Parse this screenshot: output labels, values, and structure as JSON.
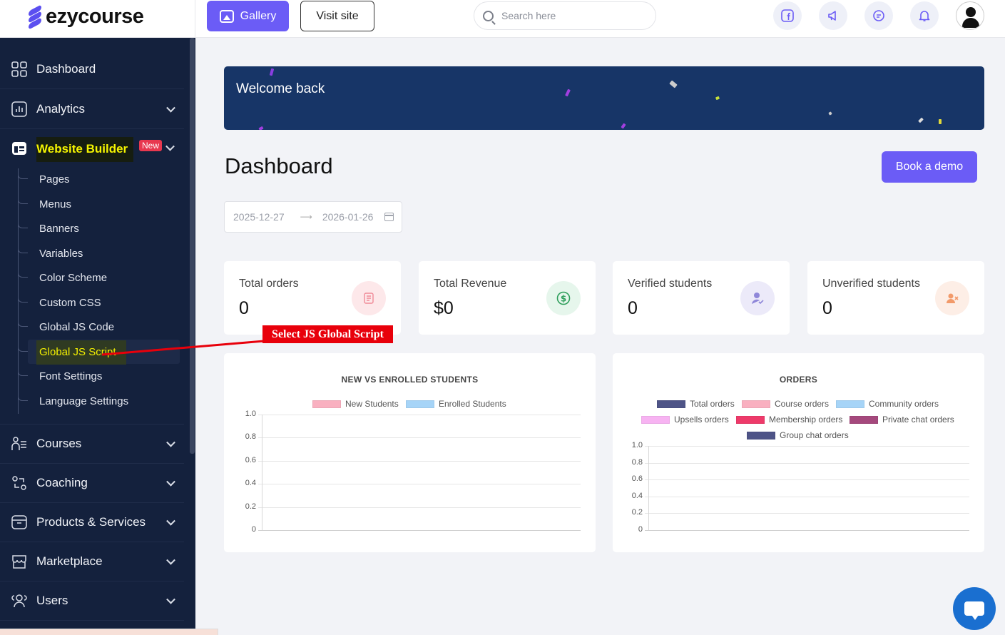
{
  "brand": {
    "logo_text": "ezycourse",
    "accent": "#6b5cf6",
    "sidebar_bg": "#14213d"
  },
  "header": {
    "gallery_label": "Gallery",
    "visit_label": "Visit site",
    "search_placeholder": "Search here",
    "icons": [
      "facebook-icon",
      "megaphone-icon",
      "chat-icon",
      "bell-icon",
      "user-avatar-icon"
    ]
  },
  "sidebar": {
    "items": [
      {
        "label": "Dashboard",
        "icon": "grid-icon"
      },
      {
        "label": "Analytics",
        "icon": "chart-icon"
      },
      {
        "label": "Website Builder",
        "icon": "builder-icon",
        "badge": "New"
      },
      {
        "label": "Courses",
        "icon": "courses-icon"
      },
      {
        "label": "Coaching",
        "icon": "coaching-icon"
      },
      {
        "label": "Products & Services",
        "icon": "products-icon"
      },
      {
        "label": "Marketplace",
        "icon": "marketplace-icon"
      },
      {
        "label": "Users",
        "icon": "users-icon"
      }
    ],
    "sub_items": [
      "Pages",
      "Menus",
      "Banners",
      "Variables",
      "Color Scheme",
      "Custom CSS",
      "Global JS Code",
      "Global JS Script",
      "Font Settings",
      "Language Settings"
    ]
  },
  "welcome": {
    "text": "Welcome back"
  },
  "page": {
    "title": "Dashboard",
    "demo_label": "Book a demo"
  },
  "date_range": {
    "start": "2025-12-27",
    "end": "2026-01-26"
  },
  "stats": [
    {
      "title": "Total orders",
      "value": "0",
      "icon": "orders-icon",
      "color": "#fde8ea"
    },
    {
      "title": "Total Revenue",
      "value": "$0",
      "icon": "dollar-icon",
      "color": "#e6f6ec"
    },
    {
      "title": "Verified students",
      "value": "0",
      "icon": "verified-user-icon",
      "color": "#eceaf9"
    },
    {
      "title": "Unverified students",
      "value": "0",
      "icon": "unverified-user-icon",
      "color": "#fdeee6"
    }
  ],
  "annotation": {
    "text": "Select JS Global Script"
  },
  "chart_data": [
    {
      "type": "line",
      "title": "NEW VS ENROLLED STUDENTS",
      "series": [
        {
          "name": "New Students",
          "color": "#f9b0c0",
          "values": []
        },
        {
          "name": "Enrolled Students",
          "color": "#a6d4f7",
          "values": []
        }
      ],
      "ylim": [
        0,
        1.0
      ],
      "yticks": [
        "1.0",
        "0.8",
        "0.6",
        "0.4",
        "0.2",
        "0"
      ],
      "grid": true,
      "legend": "top"
    },
    {
      "type": "line",
      "title": "ORDERS",
      "series": [
        {
          "name": "Total orders",
          "color": "#4e5487",
          "values": []
        },
        {
          "name": "Course orders",
          "color": "#f9b0c0",
          "values": []
        },
        {
          "name": "Community orders",
          "color": "#a6d4f7",
          "values": []
        },
        {
          "name": "Upsells orders",
          "color": "#f7b3f2",
          "values": []
        },
        {
          "name": "Membership orders",
          "color": "#ee3a6a",
          "values": []
        },
        {
          "name": "Private chat orders",
          "color": "#a5497d",
          "values": []
        },
        {
          "name": "Group chat orders",
          "color": "#4e5487",
          "values": []
        }
      ],
      "ylim": [
        0,
        1.0
      ],
      "yticks": [
        "1.0",
        "0.8",
        "0.6",
        "0.4",
        "0.2",
        "0"
      ],
      "grid": true,
      "legend": "top"
    }
  ]
}
